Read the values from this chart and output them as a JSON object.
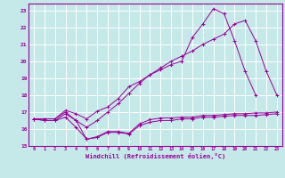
{
  "xlabel": "Windchill (Refroidissement éolien,°C)",
  "xlim": [
    -0.5,
    23.5
  ],
  "ylim": [
    15,
    23.4
  ],
  "yticks": [
    15,
    16,
    17,
    18,
    19,
    20,
    21,
    22,
    23
  ],
  "xticks": [
    0,
    1,
    2,
    3,
    4,
    5,
    6,
    7,
    8,
    9,
    10,
    11,
    12,
    13,
    14,
    15,
    16,
    17,
    18,
    19,
    20,
    21,
    22,
    23
  ],
  "bg_color": "#c5e8e8",
  "grid_color": "#ffffff",
  "line_color": "#990099",
  "series": [
    {
      "x": [
        0,
        1,
        2,
        3,
        4,
        5,
        6,
        7,
        8,
        9,
        10,
        11,
        12,
        13,
        14,
        15,
        16,
        17,
        18,
        19,
        20,
        21,
        22,
        23
      ],
      "y": [
        16.6,
        16.5,
        16.5,
        16.7,
        16.1,
        15.4,
        15.5,
        15.8,
        15.8,
        15.7,
        16.2,
        16.4,
        16.5,
        16.5,
        16.6,
        16.6,
        16.7,
        16.7,
        16.75,
        16.8,
        16.8,
        16.8,
        16.85,
        16.9
      ]
    },
    {
      "x": [
        0,
        1,
        2,
        3,
        4,
        5,
        6,
        7,
        8,
        9,
        10,
        11,
        12,
        13,
        14,
        15,
        16,
        17,
        18,
        19,
        20,
        21,
        22,
        23
      ],
      "y": [
        16.6,
        16.5,
        16.5,
        16.9,
        16.5,
        15.4,
        15.55,
        15.85,
        15.85,
        15.75,
        16.3,
        16.55,
        16.65,
        16.65,
        16.7,
        16.7,
        16.8,
        16.8,
        16.85,
        16.9,
        16.9,
        16.95,
        16.95,
        17.0
      ]
    },
    {
      "x": [
        0,
        1,
        2,
        3,
        4,
        5,
        6,
        7,
        8,
        9,
        10,
        11,
        12,
        13,
        14,
        15,
        16,
        17,
        18,
        19,
        20,
        21,
        22,
        23
      ],
      "y": [
        16.6,
        16.6,
        16.6,
        17.1,
        16.9,
        16.6,
        17.05,
        17.3,
        17.8,
        18.5,
        18.8,
        19.2,
        19.5,
        19.8,
        20.0,
        21.4,
        22.2,
        23.1,
        22.8,
        21.2,
        19.4,
        18.0,
        null,
        null
      ]
    },
    {
      "x": [
        0,
        1,
        2,
        3,
        4,
        5,
        6,
        7,
        8,
        9,
        10,
        11,
        12,
        13,
        14,
        15,
        16,
        17,
        18,
        19,
        20,
        21,
        22,
        23
      ],
      "y": [
        16.6,
        16.6,
        16.6,
        17.0,
        16.5,
        16.1,
        16.5,
        17.0,
        17.5,
        18.1,
        18.7,
        19.2,
        19.6,
        20.0,
        20.3,
        20.6,
        21.0,
        21.3,
        21.6,
        22.2,
        22.4,
        21.2,
        19.4,
        18.0
      ]
    }
  ]
}
